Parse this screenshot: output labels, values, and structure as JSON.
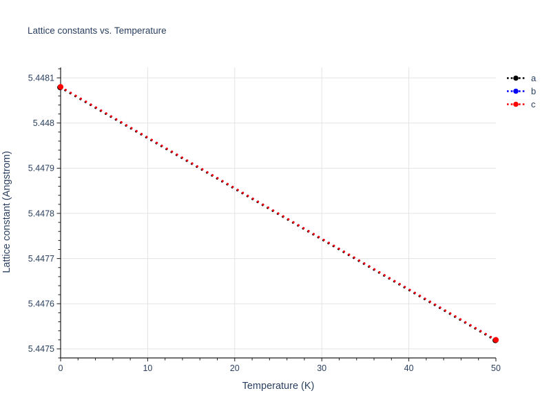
{
  "colors": {
    "text": "#2a3f5f",
    "axis": "#1a1a1a",
    "grid": "#e3e3e3",
    "background": "#ffffff"
  },
  "legend": {
    "items": [
      {
        "label": "a",
        "color": "#000000"
      },
      {
        "label": "b",
        "color": "#0000ff"
      },
      {
        "label": "c",
        "color": "#ff0000"
      }
    ]
  },
  "chart_data": {
    "type": "line",
    "title": "Lattice constants vs. Temperature",
    "xlabel": "Temperature (K)",
    "ylabel": "Lattice constant (Angstrom)",
    "xlim": [
      0,
      50
    ],
    "ylim": [
      5.44748,
      5.448123
    ],
    "x": [
      0,
      50
    ],
    "series": [
      {
        "name": "a",
        "color": "#000000",
        "values": [
          5.44808,
          5.44752
        ]
      },
      {
        "name": "b",
        "color": "#0000ff",
        "values": [
          5.44808,
          5.44752
        ]
      },
      {
        "name": "c",
        "color": "#ff0000",
        "values": [
          5.44808,
          5.44752
        ]
      }
    ],
    "line_style": "dotted",
    "markers": true,
    "grid": true,
    "legend_position": "top-right",
    "x_ticks": {
      "values": [
        0,
        10,
        20,
        30,
        40,
        50
      ],
      "labels": [
        "0",
        "10",
        "20",
        "30",
        "40",
        "50"
      ],
      "grid_values": [
        10,
        20,
        30,
        40
      ],
      "minor_step": 2
    },
    "y_ticks": {
      "values": [
        5.4475,
        5.4476,
        5.4477,
        5.4478,
        5.4479,
        5.448,
        5.4481
      ],
      "labels": [
        "5.4475",
        "5.4476",
        "5.4477",
        "5.4478",
        "5.4479",
        "5.448",
        "5.4481"
      ],
      "minor_step": 2e-05
    }
  }
}
